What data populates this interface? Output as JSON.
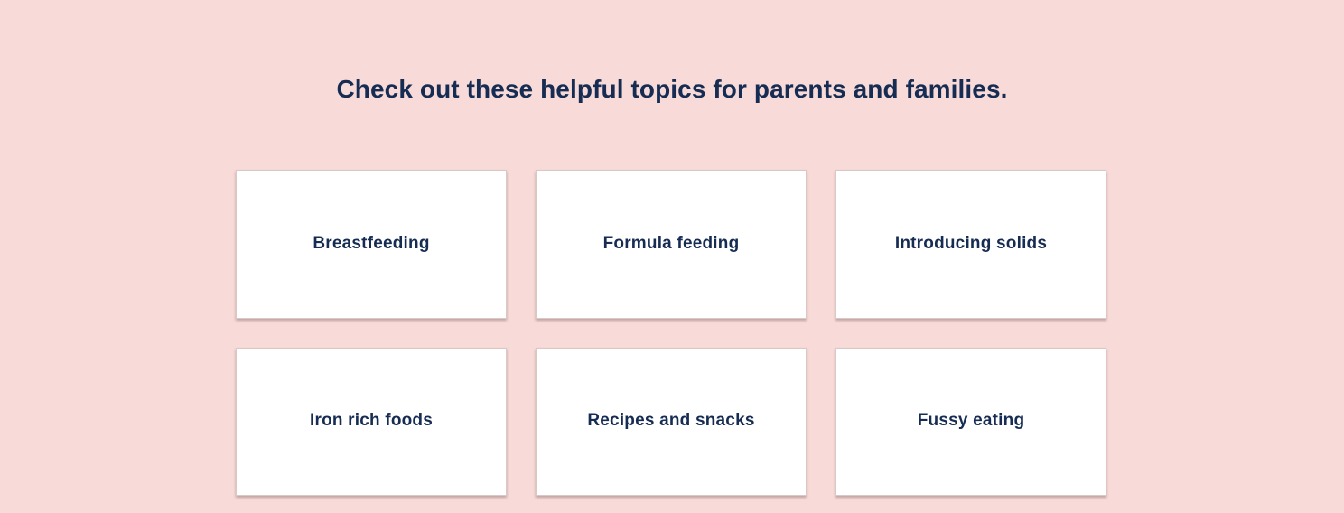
{
  "heading": "Check out these helpful topics for parents and families.",
  "topics": [
    {
      "label": "Breastfeeding"
    },
    {
      "label": "Formula feeding"
    },
    {
      "label": "Introducing solids"
    },
    {
      "label": "Iron rich foods"
    },
    {
      "label": "Recipes and snacks"
    },
    {
      "label": "Fussy eating"
    }
  ],
  "colors": {
    "background": "#f8dbd8",
    "text": "#162c53",
    "card": "#ffffff"
  }
}
